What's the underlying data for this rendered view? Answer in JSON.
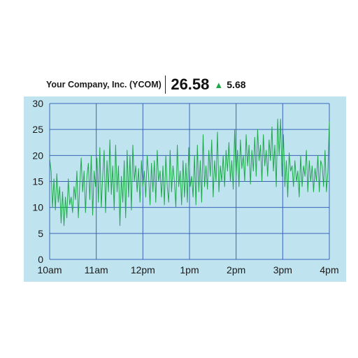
{
  "header": {
    "company": "Your Company, Inc. (YCOM)",
    "price": "26.58",
    "change": "5.68",
    "change_direction_icon": "up-triangle-icon",
    "change_color": "#1fa84a"
  },
  "colors": {
    "plot_background": "#bfe4ef",
    "grid": "#3a63b8",
    "line": "#1fa84a"
  },
  "chart_data": {
    "type": "line",
    "title": "",
    "xlabel": "",
    "ylabel": "",
    "x_ticks": [
      "10am",
      "11am",
      "12pm",
      "1pm",
      "2pm",
      "3pm",
      "4pm"
    ],
    "y_ticks": [
      0,
      5,
      10,
      15,
      20,
      25,
      30
    ],
    "ylim": [
      0,
      30
    ],
    "xlim": [
      "10am",
      "4pm"
    ],
    "grid": true,
    "series": [
      {
        "values": [
          19.5,
          17,
          10,
          15.5,
          9.5,
          16.5,
          11,
          14,
          7,
          13,
          6.5,
          12,
          8,
          15.5,
          10.5,
          12,
          9,
          14,
          11.5,
          17,
          8,
          14.5,
          19.5,
          13,
          17,
          9,
          16,
          18.5,
          11.5,
          20,
          8.5,
          17,
          14,
          19.5,
          11,
          21.5,
          10,
          16,
          21,
          9,
          19,
          13,
          23,
          12.5,
          18,
          9.5,
          22,
          13,
          18,
          6.5,
          16,
          11,
          19,
          8,
          21,
          12,
          20,
          9.5,
          22,
          15,
          18,
          13,
          17.5,
          11,
          19,
          14,
          17,
          12,
          20,
          16,
          10.5,
          18.5,
          13,
          19,
          11,
          21,
          15,
          17,
          12,
          18,
          10.5,
          20,
          14,
          11,
          21,
          13,
          18,
          15,
          10,
          22,
          14,
          17,
          10.5,
          19,
          12,
          18.5,
          11,
          21.5,
          14,
          16,
          12,
          20,
          10.5,
          22,
          13,
          19,
          11,
          24,
          14,
          18,
          13.5,
          21,
          16,
          23,
          12,
          19,
          15,
          24.5,
          13,
          18,
          15,
          20,
          14,
          21,
          17,
          22.5,
          15,
          19,
          13.5,
          25,
          16,
          21,
          14,
          23,
          17.5,
          20,
          15,
          24,
          18,
          22,
          14.5,
          21,
          17,
          23.5,
          16,
          25,
          19,
          22,
          15,
          24,
          18,
          21,
          16,
          23,
          19,
          25.5,
          17,
          22,
          14,
          27,
          20,
          27,
          16,
          24,
          14,
          19,
          12,
          20.5,
          17,
          18,
          14,
          19,
          15,
          17,
          12,
          20,
          14,
          18,
          16,
          21,
          13,
          19,
          15,
          18,
          13,
          17.5,
          15,
          20,
          13,
          19,
          18,
          14,
          21,
          13,
          17,
          26.5
        ]
      }
    ]
  }
}
